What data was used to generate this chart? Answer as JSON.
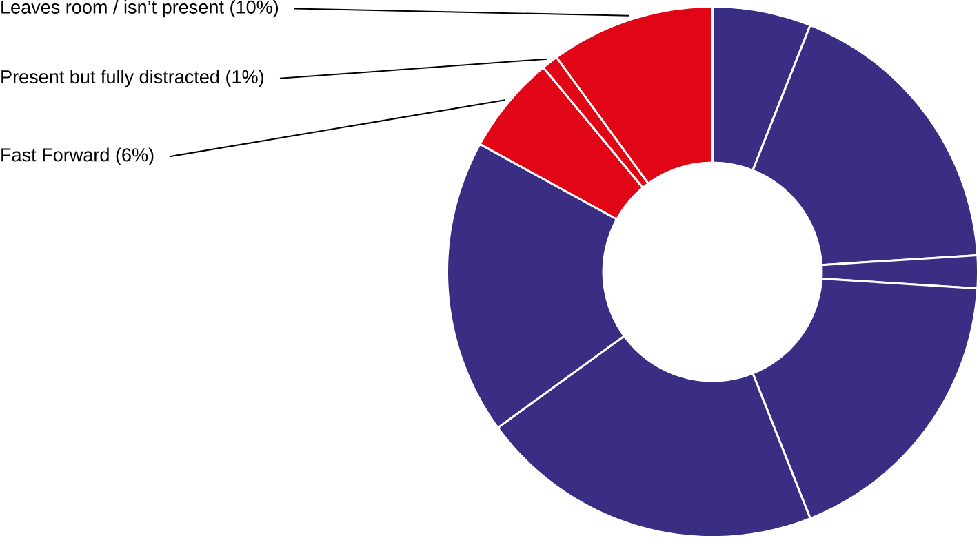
{
  "chart_data": {
    "type": "donut",
    "categories": [
      null,
      null,
      null,
      null,
      null,
      null,
      "Fast Forward",
      "Present but fully distracted",
      "Leaves room / isn’t present"
    ],
    "values": [
      6,
      18,
      2,
      18,
      21,
      18,
      6,
      1,
      10
    ],
    "value_labels": [
      null,
      null,
      null,
      null,
      null,
      null,
      "(6%)",
      "(1%)",
      "(10%)"
    ],
    "colors": [
      "#392d84",
      "#392d84",
      "#392d84",
      "#392d84",
      "#392d84",
      "#392d84",
      "#e10615",
      "#e10615",
      "#e10615"
    ]
  }
}
